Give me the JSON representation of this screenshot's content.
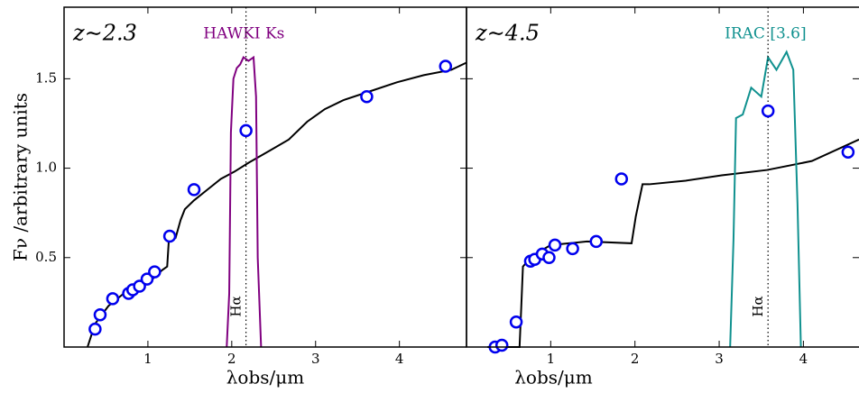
{
  "chart_data": [
    {
      "type": "line",
      "title": "z∼2.3",
      "xlabel": "λobs/μm",
      "ylabel": "Fν /arbitrary units",
      "xlim": [
        0,
        4.8
      ],
      "ylim": [
        0,
        1.9
      ],
      "xticks": [
        1,
        2,
        3,
        4
      ],
      "yticks": [
        0.5,
        {
          "value": 1,
          "label": "1.0"
        },
        1.5
      ],
      "ytick_labels": true,
      "series": [
        {
          "style": "line",
          "color": "#000000",
          "x": [
            0.28,
            0.37,
            0.53,
            0.74,
            1.01,
            1.17,
            1.23,
            1.25,
            1.33,
            1.39,
            1.44,
            1.55,
            1.71,
            1.87,
            2.03,
            2.2,
            2.46,
            2.68,
            2.9,
            3.11,
            3.33,
            3.65,
            3.97,
            4.29,
            4.62,
            4.8
          ],
          "values": [
            0,
            0.13,
            0.23,
            0.31,
            0.36,
            0.43,
            0.45,
            0.6,
            0.61,
            0.71,
            0.77,
            0.82,
            0.88,
            0.94,
            0.98,
            1.03,
            1.1,
            1.16,
            1.26,
            1.33,
            1.38,
            1.43,
            1.48,
            1.52,
            1.55,
            1.59
          ]
        },
        {
          "style": "line",
          "name": "HAWKI Ks",
          "color": "#800080",
          "x": [
            1.94,
            1.97,
            1.99,
            2.02,
            2.06,
            2.1,
            2.14,
            2.2,
            2.26,
            2.29,
            2.31,
            2.35
          ],
          "values": [
            0,
            0.3,
            1.2,
            1.5,
            1.56,
            1.58,
            1.62,
            1.6,
            1.62,
            1.4,
            0.5,
            0
          ]
        },
        {
          "style": "points",
          "color": "#0000ee",
          "x": [
            0.37,
            0.43,
            0.58,
            0.77,
            0.82,
            0.9,
            0.99,
            1.08,
            1.26,
            1.55,
            2.17,
            3.61,
            4.55
          ],
          "values": [
            0.1,
            0.18,
            0.27,
            0.3,
            0.32,
            0.34,
            0.38,
            0.42,
            0.62,
            0.88,
            1.21,
            1.4,
            1.57
          ]
        }
      ],
      "annotations": [
        {
          "text": "Hα",
          "x": 2.17
        }
      ]
    },
    {
      "type": "line",
      "title": "z∼4.5",
      "xlabel": "λobs/μm",
      "xlim": [
        0,
        4.66
      ],
      "ylim": [
        0,
        1.9
      ],
      "xticks": [
        1,
        2,
        3,
        4
      ],
      "yticks": [
        0.5,
        1,
        1.5
      ],
      "ytick_labels": false,
      "series": [
        {
          "style": "line",
          "color": "#000000",
          "x": [
            0.25,
            0.63,
            0.65,
            0.67,
            0.78,
            1.0,
            1.43,
            1.96,
            2.01,
            2.09,
            2.17,
            2.6,
            3.03,
            3.57,
            4.1,
            4.66
          ],
          "values": [
            0,
            0,
            0.22,
            0.45,
            0.51,
            0.57,
            0.59,
            0.58,
            0.73,
            0.91,
            0.91,
            0.93,
            0.96,
            0.99,
            1.04,
            1.16
          ]
        },
        {
          "style": "line",
          "name": "IRAC [3.6]",
          "color": "#10918f",
          "x": [
            3.13,
            3.17,
            3.2,
            3.28,
            3.38,
            3.5,
            3.58,
            3.68,
            3.8,
            3.88,
            3.93,
            3.97
          ],
          "values": [
            0,
            0.6,
            1.28,
            1.3,
            1.45,
            1.4,
            1.62,
            1.55,
            1.65,
            1.55,
            0.8,
            0
          ]
        },
        {
          "style": "points",
          "color": "#0000ee",
          "x": [
            0.34,
            0.42,
            0.59,
            0.76,
            0.81,
            0.9,
            0.98,
            1.05,
            1.26,
            1.54,
            1.84,
            3.58,
            4.53
          ],
          "values": [
            0,
            0.01,
            0.14,
            0.48,
            0.49,
            0.52,
            0.5,
            0.57,
            0.55,
            0.59,
            0.94,
            1.32,
            1.09
          ]
        }
      ],
      "annotations": [
        {
          "text": "Hα",
          "x": 3.58
        }
      ]
    }
  ]
}
